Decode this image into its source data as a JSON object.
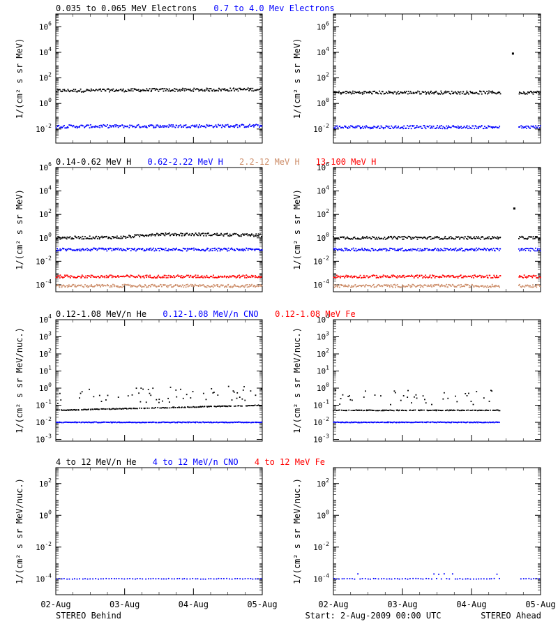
{
  "footer": {
    "left": "STEREO Behind",
    "center": "Start:  2-Aug-2009 00:00 UTC",
    "right": "STEREO Ahead"
  },
  "x_ticks": [
    "02-Aug",
    "03-Aug",
    "04-Aug",
    "05-Aug"
  ],
  "colors": {
    "black": "#000000",
    "blue": "#0000ff",
    "tan": "#cd8e6a",
    "red": "#ff0000"
  },
  "chart_data": [
    {
      "type": "scatter",
      "row": 1,
      "ylabel": "1/(cm² s sr MeV)",
      "y_scale": "log",
      "y_tick_exponents": [
        -2,
        0,
        2,
        4,
        6
      ],
      "ylim_exp": [
        -3.1,
        7.0
      ],
      "labels": [
        {
          "text": "0.035 to 0.065 MeV Electrons",
          "color": "#000000"
        },
        {
          "text": "0.7 to 4.0 Mev Electrons",
          "color": "#0000ff"
        }
      ],
      "behind": {
        "series": [
          {
            "name": "0.035 to 0.065 MeV Electrons",
            "color": "#000000",
            "x_days": [
              0,
              3.05
            ],
            "log10_flux": [
              1.0,
              1.1
            ]
          },
          {
            "name": "0.7 to 4.0 Mev Electrons",
            "color": "#0000ff",
            "x_days": [
              0,
              3.05
            ],
            "log10_flux": [
              -1.8,
              -1.75
            ]
          }
        ]
      },
      "ahead": {
        "data_end_day": 2.42,
        "resume_day": 2.68,
        "series": [
          {
            "name": "0.035 to 0.065 MeV Electrons",
            "color": "#000000",
            "x_days": [
              0,
              3.05
            ],
            "log10_flux": [
              0.85,
              0.85
            ]
          },
          {
            "name": "0.7 to 4.0 Mev Electrons",
            "color": "#0000ff",
            "x_days": [
              0,
              3.05
            ],
            "log10_flux": [
              -1.85,
              -1.85
            ]
          }
        ],
        "outliers": [
          {
            "x_day": 2.6,
            "log10_flux": 3.9
          }
        ]
      }
    },
    {
      "type": "scatter",
      "row": 2,
      "ylabel": "1/(cm² s sr MeV)",
      "y_scale": "log",
      "y_tick_exponents": [
        -4,
        -2,
        0,
        2,
        4,
        6
      ],
      "ylim_exp": [
        -4.6,
        6.0
      ],
      "labels": [
        {
          "text": "0.14-0.62 MeV H",
          "color": "#000000"
        },
        {
          "text": "0.62-2.22 MeV H",
          "color": "#0000ff"
        },
        {
          "text": "2.2-12 MeV H",
          "color": "#cd8e6a"
        },
        {
          "text": "13-100 MeV H",
          "color": "#ff0000"
        }
      ],
      "behind": {
        "series": [
          {
            "name": "0.14-0.62 MeV H",
            "color": "#000000",
            "x_days": [
              0,
              1.0,
              1.4,
              2.1,
              2.6,
              3.05
            ],
            "log10_flux": [
              0.0,
              0.05,
              0.3,
              0.3,
              0.25,
              0.2
            ]
          },
          {
            "name": "0.62-2.22 MeV H",
            "color": "#0000ff",
            "x_days": [
              0,
              3.05
            ],
            "log10_flux": [
              -1.0,
              -1.0
            ]
          },
          {
            "name": "13-100 MeV H",
            "color": "#ff0000",
            "x_days": [
              0,
              3.05
            ],
            "log10_flux": [
              -3.3,
              -3.3
            ]
          },
          {
            "name": "2.2-12 MeV H",
            "color": "#cd8e6a",
            "x_days": [
              0,
              3.05
            ],
            "log10_flux": [
              -4.1,
              -4.1
            ]
          }
        ]
      },
      "ahead": {
        "data_end_day": 2.42,
        "resume_day": 2.68,
        "series": [
          {
            "name": "0.14-0.62 MeV H",
            "color": "#000000",
            "x_days": [
              0,
              3.05
            ],
            "log10_flux": [
              0.0,
              0.0
            ]
          },
          {
            "name": "0.62-2.22 MeV H",
            "color": "#0000ff",
            "x_days": [
              0,
              3.05
            ],
            "log10_flux": [
              -1.0,
              -1.0
            ]
          },
          {
            "name": "13-100 MeV H",
            "color": "#ff0000",
            "x_days": [
              0,
              3.05
            ],
            "log10_flux": [
              -3.3,
              -3.3
            ]
          },
          {
            "name": "2.2-12 MeV H",
            "color": "#cd8e6a",
            "x_days": [
              0,
              3.05
            ],
            "log10_flux": [
              -4.1,
              -4.1
            ]
          }
        ],
        "outliers": [
          {
            "x_day": 2.62,
            "log10_flux": 2.5
          }
        ]
      }
    },
    {
      "type": "scatter",
      "row": 3,
      "ylabel": "1/(cm² s sr MeV/nuc.)",
      "y_scale": "log",
      "y_tick_exponents": [
        -3,
        -2,
        -1,
        0,
        1,
        2,
        3,
        4
      ],
      "ylim_exp": [
        -3.1,
        4.0
      ],
      "labels": [
        {
          "text": "0.12-1.08 MeV/n He",
          "color": "#000000"
        },
        {
          "text": "0.12-1.08 MeV/n CNO",
          "color": "#0000ff"
        },
        {
          "text": "0.12-1.08 MeV Fe",
          "color": "#ff0000"
        }
      ],
      "behind": {
        "series": [
          {
            "name": "0.12-1.08 MeV/n He",
            "color": "#000000",
            "x_days": [
              0,
              3.05
            ],
            "log10_flux": [
              -1.3,
              -1.0
            ]
          },
          {
            "name": "0.12-1.08 MeV/n CNO",
            "color": "#0000ff",
            "x_days": [
              0,
              3.05
            ],
            "log10_flux": [
              -2.0,
              -2.0
            ]
          }
        ]
      },
      "ahead": {
        "data_end_day": 2.42,
        "resume_day": 3.1,
        "series": [
          {
            "name": "0.12-1.08 MeV/n He",
            "color": "#000000",
            "x_days": [
              0,
              2.42
            ],
            "log10_flux": [
              -1.3,
              -1.3
            ]
          },
          {
            "name": "0.12-1.08 MeV/n CNO",
            "color": "#0000ff",
            "x_days": [
              0,
              2.42
            ],
            "log10_flux": [
              -2.0,
              -2.0
            ]
          }
        ]
      }
    },
    {
      "type": "scatter",
      "row": 4,
      "ylabel": "1/(cm² s sr MeV/nuc.)",
      "y_scale": "log",
      "y_tick_exponents": [
        -4,
        -2,
        0,
        2
      ],
      "ylim_exp": [
        -5.0,
        3.0
      ],
      "labels": [
        {
          "text": "4 to 12 MeV/n He",
          "color": "#000000"
        },
        {
          "text": "4 to 12 MeV/n CNO",
          "color": "#0000ff"
        },
        {
          "text": "4 to 12 MeV Fe",
          "color": "#ff0000"
        }
      ],
      "behind": {
        "series": [
          {
            "name": "4 to 12 MeV/n CNO",
            "color": "#0000ff",
            "x_days": [
              0,
              3.05
            ],
            "log10_flux": [
              -4.0,
              -4.0
            ]
          }
        ]
      },
      "ahead": {
        "data_end_day": 2.42,
        "resume_day": 2.68,
        "series": [
          {
            "name": "4 to 12 MeV/n CNO",
            "color": "#0000ff",
            "x_days": [
              0,
              3.05
            ],
            "log10_flux": [
              -4.0,
              -4.0
            ]
          }
        ]
      }
    }
  ]
}
